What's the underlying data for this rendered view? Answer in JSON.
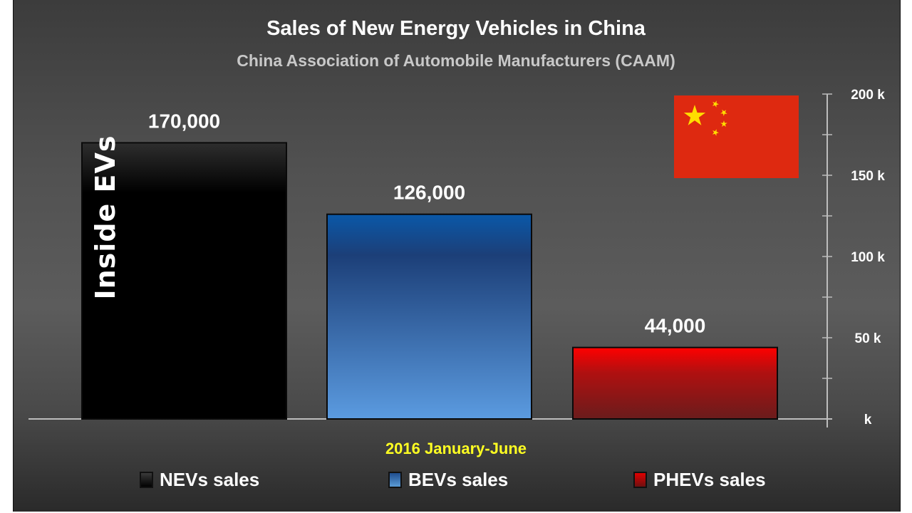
{
  "chart_data": {
    "type": "bar",
    "title": "Sales of New Energy Vehicles in China",
    "subtitle": "China Association of Automobile Manufacturers (CAAM)",
    "xlabel": "2016 January-June",
    "ylabel": "",
    "categories": [
      "NEVs sales",
      "BEVs sales",
      "PHEVs sales"
    ],
    "values": [
      170000,
      126000,
      44000
    ],
    "value_labels": [
      "170,000",
      "126,000",
      "44,000"
    ],
    "ylim": [
      0,
      200000
    ],
    "y_ticks": [
      0,
      50000,
      100000,
      150000,
      200000
    ],
    "y_tick_labels": [
      "k",
      "50 k",
      "100 k",
      "150 k",
      "200 k"
    ],
    "y_axis_side": "right",
    "grid": false,
    "legend_position": "bottom",
    "colors": {
      "NEVs sales": "#000000",
      "BEVs sales": "#2f5f9f",
      "PHEVs sales": "#c00000"
    },
    "label_color": "#ffffff",
    "xlabel_color": "#ffff22"
  },
  "watermark": "Inside EVs",
  "flag": {
    "icon": "china-flag-icon",
    "background": "#de2910",
    "stars": "#ffde00"
  }
}
